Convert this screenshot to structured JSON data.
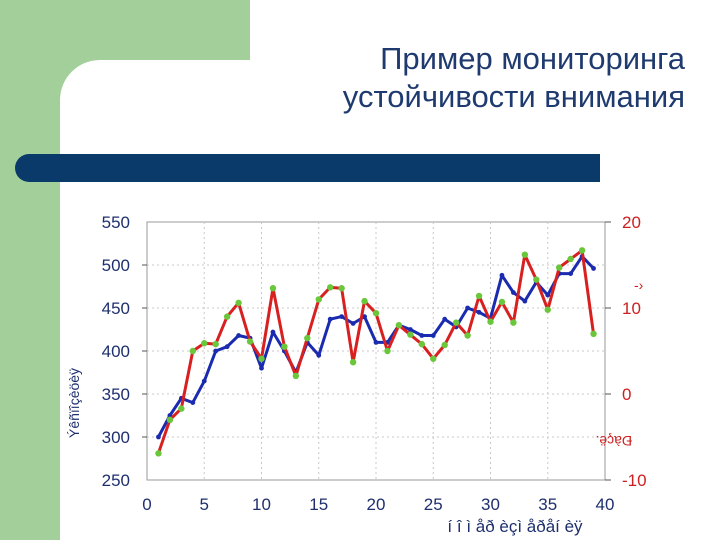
{
  "slide": {
    "title_line1": "Пример мониторинга",
    "title_line2": "устойчивости внимания",
    "colors": {
      "green": "#a3cf9b",
      "navy": "#0a3a6a",
      "title": "#1e3a6e"
    }
  },
  "chart_data": {
    "type": "line",
    "xlabel": "í î ì  åð èçì  åðåí èÿ",
    "ylabel_left": "Ýêñïîçèöèÿ",
    "ylabel_right": "Ðàçë.",
    "right_mark": "-›",
    "xlim": [
      0,
      40
    ],
    "ylim_left": [
      250,
      550
    ],
    "ylim_right": [
      -10,
      20
    ],
    "xticks": [
      0,
      5,
      10,
      15,
      20,
      25,
      30,
      35,
      40
    ],
    "yticks_left": [
      250,
      300,
      350,
      400,
      450,
      500,
      550
    ],
    "yticks_right": [
      -10,
      0,
      10,
      20
    ],
    "grid": true,
    "series": [
      {
        "axis": "left",
        "color": "#1a2bb0",
        "x": [
          1,
          2,
          3,
          4,
          5,
          6,
          7,
          8,
          9,
          10,
          11,
          12,
          13,
          14,
          15,
          16,
          17,
          18,
          19,
          20,
          21,
          22,
          23,
          24,
          25,
          26,
          27,
          28,
          29,
          30,
          31,
          32,
          33,
          34,
          35,
          36,
          37,
          38,
          39
        ],
        "values": [
          300,
          325,
          345,
          340,
          365,
          400,
          405,
          418,
          415,
          380,
          422,
          400,
          375,
          410,
          395,
          437,
          440,
          432,
          440,
          410,
          410,
          430,
          425,
          418,
          418,
          437,
          428,
          450,
          445,
          438,
          488,
          468,
          458,
          480,
          465,
          490,
          490,
          510,
          496
        ]
      },
      {
        "axis": "left",
        "color": "#d82020",
        "marker_color": "#6ac63a",
        "x": [
          1,
          2,
          3,
          4,
          5,
          6,
          7,
          8,
          9,
          10,
          11,
          12,
          13,
          14,
          15,
          16,
          17,
          18,
          19,
          20,
          21,
          22,
          23,
          24,
          25,
          26,
          27,
          28,
          29,
          30,
          31,
          32,
          33,
          34,
          35,
          36,
          37,
          38,
          39
        ],
        "values": [
          281,
          320,
          333,
          400,
          409,
          408,
          440,
          456,
          411,
          391,
          473,
          405,
          371,
          415,
          460,
          474,
          473,
          387,
          458,
          444,
          400,
          430,
          419,
          408,
          391,
          407,
          433,
          418,
          464,
          434,
          457,
          433,
          512,
          483,
          448,
          497,
          507,
          517,
          420
        ]
      }
    ]
  }
}
